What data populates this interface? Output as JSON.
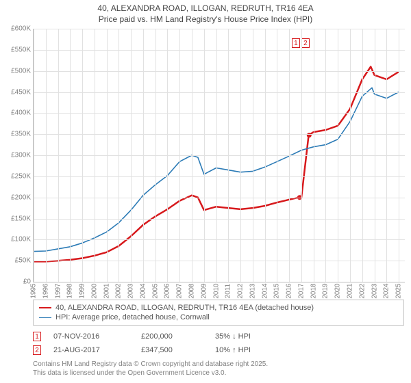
{
  "title": {
    "line1": "40, ALEXANDRA ROAD, ILLOGAN, REDRUTH, TR16 4EA",
    "line2": "Price paid vs. HM Land Registry's House Price Index (HPI)",
    "fontsize": 12,
    "color": "#444444"
  },
  "chart": {
    "type": "line",
    "background_color": "#ffffff",
    "grid_color": "#e1e1e1",
    "axis_color": "#bbbbbb",
    "tick_color": "#808080",
    "tick_fontsize": 10,
    "x": {
      "min": 1995,
      "max": 2025.5,
      "ticks": [
        1995,
        1996,
        1997,
        1998,
        1999,
        2000,
        2001,
        2002,
        2003,
        2004,
        2005,
        2006,
        2007,
        2008,
        2009,
        2010,
        2011,
        2012,
        2013,
        2014,
        2015,
        2016,
        2017,
        2018,
        2019,
        2020,
        2021,
        2022,
        2023,
        2024,
        2025
      ]
    },
    "y": {
      "min": 0,
      "max": 600000,
      "ticks": [
        0,
        50000,
        100000,
        150000,
        200000,
        250000,
        300000,
        350000,
        400000,
        450000,
        500000,
        550000,
        600000
      ],
      "tick_labels": [
        "£0",
        "£50K",
        "£100K",
        "£150K",
        "£200K",
        "£250K",
        "£300K",
        "£350K",
        "£400K",
        "£450K",
        "£500K",
        "£550K",
        "£600K"
      ]
    },
    "series": [
      {
        "id": "price_paid",
        "label": "40, ALEXANDRA ROAD, ILLOGAN, REDRUTH, TR16 4EA (detached house)",
        "color": "#d7191c",
        "line_width": 2.5,
        "values": [
          [
            1995,
            48000
          ],
          [
            1996,
            48000
          ],
          [
            1997,
            50000
          ],
          [
            1998,
            52000
          ],
          [
            1999,
            56000
          ],
          [
            2000,
            62000
          ],
          [
            2001,
            70000
          ],
          [
            2002,
            85000
          ],
          [
            2003,
            108000
          ],
          [
            2004,
            135000
          ],
          [
            2005,
            155000
          ],
          [
            2006,
            172000
          ],
          [
            2007,
            192000
          ],
          [
            2008,
            205000
          ],
          [
            2008.5,
            200000
          ],
          [
            2009,
            170000
          ],
          [
            2010,
            178000
          ],
          [
            2011,
            175000
          ],
          [
            2012,
            172000
          ],
          [
            2013,
            175000
          ],
          [
            2014,
            180000
          ],
          [
            2015,
            188000
          ],
          [
            2016,
            195000
          ],
          [
            2016.8,
            200000
          ],
          [
            2017.0,
            200000
          ],
          [
            2017.6,
            347500
          ],
          [
            2018,
            355000
          ],
          [
            2019,
            360000
          ],
          [
            2020,
            370000
          ],
          [
            2021,
            410000
          ],
          [
            2022,
            480000
          ],
          [
            2022.7,
            510000
          ],
          [
            2023,
            490000
          ],
          [
            2024,
            480000
          ],
          [
            2025,
            498000
          ]
        ],
        "sale_markers": [
          {
            "x": 2016.85,
            "y": 200000
          },
          {
            "x": 2017.64,
            "y": 347500
          }
        ]
      },
      {
        "id": "hpi",
        "label": "HPI: Average price, detached house, Cornwall",
        "color": "#2c7bb6",
        "line_width": 1.6,
        "values": [
          [
            1995,
            72000
          ],
          [
            1996,
            73000
          ],
          [
            1997,
            78000
          ],
          [
            1998,
            83000
          ],
          [
            1999,
            92000
          ],
          [
            2000,
            104000
          ],
          [
            2001,
            118000
          ],
          [
            2002,
            140000
          ],
          [
            2003,
            170000
          ],
          [
            2004,
            205000
          ],
          [
            2005,
            230000
          ],
          [
            2006,
            252000
          ],
          [
            2007,
            285000
          ],
          [
            2008,
            300000
          ],
          [
            2008.5,
            295000
          ],
          [
            2009,
            255000
          ],
          [
            2010,
            270000
          ],
          [
            2011,
            265000
          ],
          [
            2012,
            260000
          ],
          [
            2013,
            262000
          ],
          [
            2014,
            272000
          ],
          [
            2015,
            285000
          ],
          [
            2016,
            298000
          ],
          [
            2017,
            312000
          ],
          [
            2018,
            320000
          ],
          [
            2019,
            325000
          ],
          [
            2020,
            338000
          ],
          [
            2021,
            380000
          ],
          [
            2022,
            440000
          ],
          [
            2022.8,
            460000
          ],
          [
            2023,
            445000
          ],
          [
            2024,
            435000
          ],
          [
            2025,
            450000
          ]
        ]
      }
    ],
    "floating_markers": {
      "x": 2017.0,
      "y": 565000,
      "labels": [
        "1",
        "2"
      ],
      "color": "#d7191c"
    }
  },
  "legend": {
    "border_color": "#c2c2c2",
    "fontsize": 11,
    "items": [
      {
        "color": "#d7191c",
        "width": 2.5,
        "label": "40, ALEXANDRA ROAD, ILLOGAN, REDRUTH, TR16 4EA (detached house)"
      },
      {
        "color": "#2c7bb6",
        "width": 1.6,
        "label": "HPI: Average price, detached house, Cornwall"
      }
    ]
  },
  "sales": [
    {
      "n": "1",
      "date": "07-NOV-2016",
      "price": "£200,000",
      "pct": "35% ↓ HPI",
      "color": "#d7191c"
    },
    {
      "n": "2",
      "date": "21-AUG-2017",
      "price": "£347,500",
      "pct": "10% ↑ HPI",
      "color": "#d7191c"
    }
  ],
  "attribution": {
    "line1": "Contains HM Land Registry data © Crown copyright and database right 2025.",
    "line2": "This data is licensed under the Open Government Licence v3.0."
  }
}
